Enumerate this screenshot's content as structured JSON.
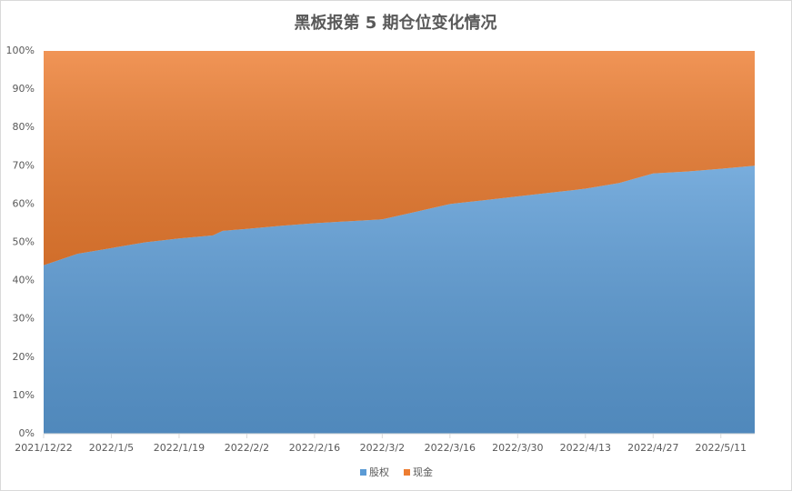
{
  "chart_data": {
    "type": "stacked-area",
    "title": "黑板报第 5 期仓位变化情况",
    "x": [
      "2021/12/22",
      "2021/12/29",
      "2022/1/5",
      "2022/1/12",
      "2022/1/19",
      "2022/1/26",
      "2022/1/28",
      "2022/2/2",
      "2022/2/9",
      "2022/2/16",
      "2022/2/23",
      "2022/3/2",
      "2022/3/9",
      "2022/3/16",
      "2022/3/23",
      "2022/3/30",
      "2022/4/6",
      "2022/4/13",
      "2022/4/20",
      "2022/4/27",
      "2022/5/4",
      "2022/5/11",
      "2022/5/18"
    ],
    "series": [
      {
        "name": "股权",
        "color": "#5b9bd5",
        "values": [
          44,
          47,
          48.5,
          50,
          51,
          51.8,
          53,
          53.5,
          54.3,
          55,
          55.5,
          56,
          58,
          60,
          61,
          62,
          63,
          64,
          65.5,
          68,
          68.5,
          69.2,
          70
        ]
      },
      {
        "name": "现金",
        "color": "#ed7d31",
        "values": [
          56,
          53,
          51.5,
          50,
          49,
          48.2,
          47,
          46.5,
          45.7,
          45,
          44.5,
          44,
          42,
          40,
          39,
          38,
          37,
          36,
          34.5,
          32,
          31.5,
          30.8,
          30
        ]
      }
    ],
    "xlim": [
      "2021/12/22",
      "2022/5/18"
    ],
    "xticks": [
      "2021/12/22",
      "2022/1/5",
      "2022/1/19",
      "2022/2/2",
      "2022/2/16",
      "2022/3/2",
      "2022/3/16",
      "2022/3/30",
      "2022/4/13",
      "2022/4/27",
      "2022/5/11"
    ],
    "ylim": [
      0,
      100
    ],
    "yticks": [
      {
        "value": 0,
        "label": "0%"
      },
      {
        "value": 10,
        "label": "10%"
      },
      {
        "value": 20,
        "label": "20%"
      },
      {
        "value": 30,
        "label": "30%"
      },
      {
        "value": 40,
        "label": "40%"
      },
      {
        "value": 50,
        "label": "50%"
      },
      {
        "value": 60,
        "label": "60%"
      },
      {
        "value": 70,
        "label": "70%"
      },
      {
        "value": 80,
        "label": "80%"
      },
      {
        "value": 90,
        "label": "90%"
      },
      {
        "value": 100,
        "label": "100%"
      }
    ],
    "legend": "bottom"
  }
}
